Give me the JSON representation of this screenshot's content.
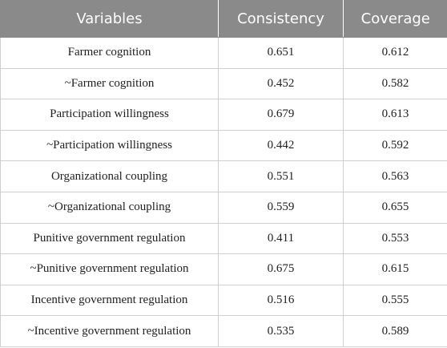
{
  "table": {
    "headers": [
      "Variables",
      "Consistency",
      "Coverage"
    ],
    "rows": [
      {
        "variable": "Farmer cognition",
        "consistency": "0.651",
        "coverage": "0.612"
      },
      {
        "variable": "~Farmer cognition",
        "consistency": "0.452",
        "coverage": "0.582"
      },
      {
        "variable": "Participation willingness",
        "consistency": "0.679",
        "coverage": "0.613"
      },
      {
        "variable": "~Participation willingness",
        "consistency": "0.442",
        "coverage": "0.592"
      },
      {
        "variable": "Organizational coupling",
        "consistency": "0.551",
        "coverage": "0.563"
      },
      {
        "variable": "~Organizational coupling",
        "consistency": "0.559",
        "coverage": "0.655"
      },
      {
        "variable": "Punitive government regulation",
        "consistency": "0.411",
        "coverage": "0.553"
      },
      {
        "variable": "~Punitive government regulation",
        "consistency": "0.675",
        "coverage": "0.615"
      },
      {
        "variable": "Incentive government regulation",
        "consistency": "0.516",
        "coverage": "0.555"
      },
      {
        "variable": "~Incentive government regulation",
        "consistency": "0.535",
        "coverage": "0.589"
      }
    ]
  },
  "colors": {
    "header_bg": "#8a8a8a",
    "header_text": "#ffffff",
    "grid_line": "#cfcfcf"
  }
}
